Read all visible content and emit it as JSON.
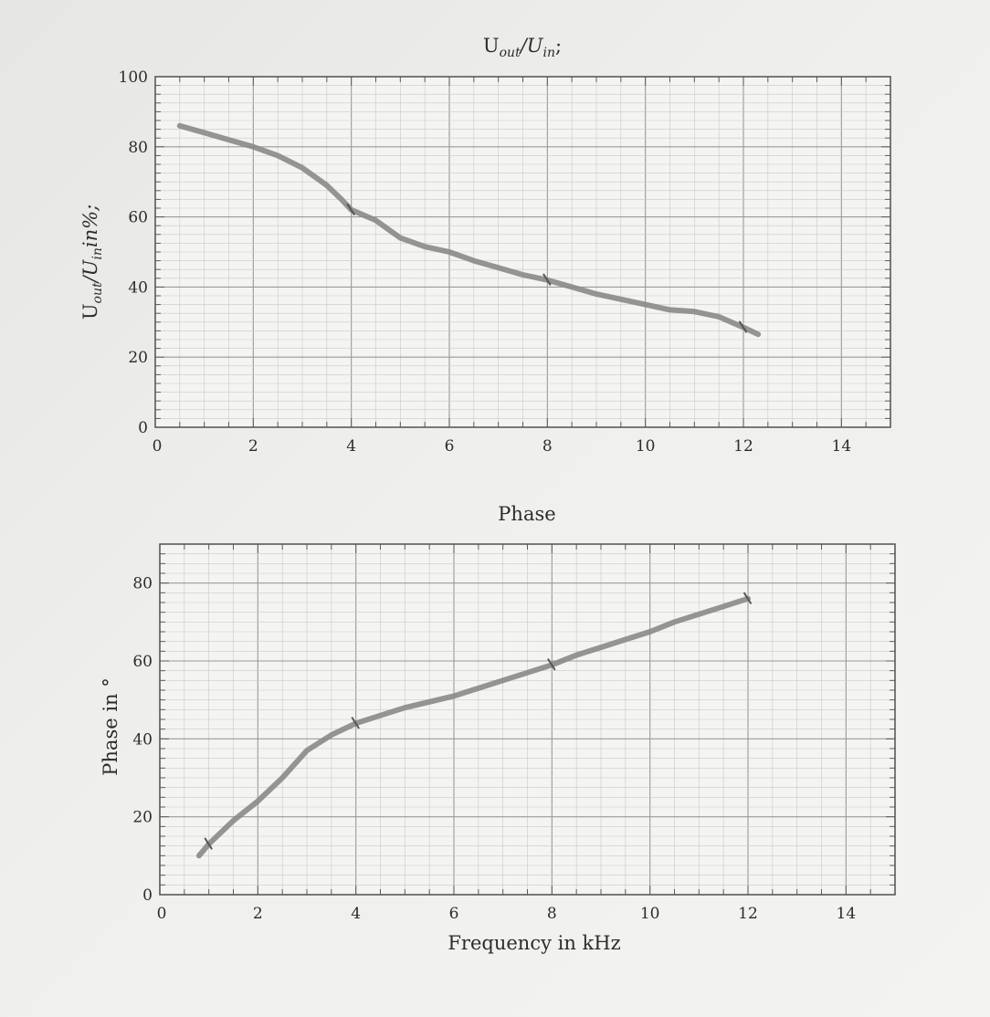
{
  "chart_data": [
    {
      "type": "line",
      "title": "U_out/U_in;",
      "title_main": "U",
      "title_sub1": "out",
      "title_mid": "/U",
      "title_sub2": "in",
      "title_end": ";",
      "xlabel": "",
      "ylabel": "U_out/U_in in%;",
      "ylabel_main": "U",
      "ylabel_sub1": "out",
      "ylabel_mid": "/U",
      "ylabel_sub2": "in",
      "ylabel_end": "in%;",
      "xlim": [
        0,
        15
      ],
      "ylim": [
        0,
        100
      ],
      "xticks": [
        "0",
        "2",
        "4",
        "6",
        "8",
        "10",
        "12",
        "14"
      ],
      "yticks": [
        "0",
        "20",
        "40",
        "60",
        "80",
        "100"
      ],
      "grid": true,
      "markers_x": [
        4,
        8,
        12
      ],
      "series": [
        {
          "x": [
            0.5,
            1,
            1.5,
            2,
            2.5,
            3,
            3.5,
            3.8,
            4,
            4.5,
            5,
            5.5,
            6,
            6.5,
            7,
            7.5,
            8,
            8.5,
            9,
            9.5,
            10,
            10.5,
            11,
            11.5,
            12,
            12.3
          ],
          "y": [
            86,
            84,
            82,
            80,
            77.5,
            74,
            69,
            65,
            62,
            59,
            54,
            51.5,
            50,
            47.5,
            45.5,
            43.5,
            42,
            40,
            38,
            36.5,
            35,
            33.5,
            33,
            31.5,
            28.5,
            26.5
          ]
        }
      ]
    },
    {
      "type": "line",
      "title": "Phase",
      "xlabel": "Frequency in kHz",
      "ylabel": "Phase in °",
      "xlim": [
        0,
        15
      ],
      "ylim": [
        0,
        90
      ],
      "xticks": [
        "0",
        "2",
        "4",
        "6",
        "8",
        "10",
        "12",
        "14"
      ],
      "yticks": [
        "0",
        "20",
        "40",
        "60",
        "80"
      ],
      "grid": true,
      "markers_x": [
        1,
        4,
        8,
        12
      ],
      "series": [
        {
          "x": [
            0.8,
            1,
            1.5,
            2,
            2.5,
            3,
            3.5,
            4,
            4.5,
            5,
            5.5,
            6,
            6.5,
            7,
            7.5,
            8,
            8.5,
            9,
            9.5,
            10,
            10.5,
            11,
            11.5,
            12
          ],
          "y": [
            10,
            13,
            19,
            24,
            30,
            37,
            41,
            44,
            46,
            48,
            49.5,
            51,
            53,
            55,
            57,
            59,
            61.5,
            63.5,
            65.5,
            67.5,
            70,
            72,
            74,
            76
          ]
        }
      ]
    }
  ],
  "colors": {
    "paper": "#f4f4f2",
    "grid_minor": "#c9c9c7",
    "grid_major": "#9a9a98",
    "frame": "#5a5a58",
    "curve": "#8a8a88",
    "text": "#2c2c2c"
  }
}
